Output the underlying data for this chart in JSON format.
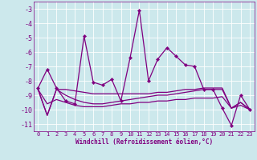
{
  "xlabel": "Windchill (Refroidissement éolien,°C)",
  "background_color": "#cce8ec",
  "line_color": "#800080",
  "xlim": [
    -0.5,
    23.5
  ],
  "ylim": [
    -11.5,
    -2.5
  ],
  "yticks": [
    -3,
    -4,
    -5,
    -6,
    -7,
    -8,
    -9,
    -10,
    -11
  ],
  "xticks": [
    0,
    1,
    2,
    3,
    4,
    5,
    6,
    7,
    8,
    9,
    10,
    11,
    12,
    13,
    14,
    15,
    16,
    17,
    18,
    19,
    20,
    21,
    22,
    23
  ],
  "series1_x": [
    0,
    1,
    2,
    3,
    4,
    5,
    6,
    7,
    8,
    9,
    10,
    11,
    12,
    13,
    14,
    15,
    16,
    17,
    18,
    19,
    20,
    21,
    22,
    23
  ],
  "series1_y": [
    -8.5,
    -7.2,
    -8.5,
    -9.4,
    -9.6,
    -4.9,
    -8.1,
    -8.3,
    -7.9,
    -9.4,
    -6.4,
    -3.1,
    -8.0,
    -6.5,
    -5.7,
    -6.3,
    -6.9,
    -7.0,
    -8.6,
    -8.6,
    -9.9,
    -11.1,
    -9.0,
    -10.0
  ],
  "series2_x": [
    0,
    1,
    2,
    3,
    4,
    5,
    6,
    7,
    8,
    9,
    10,
    11,
    12,
    13,
    14,
    15,
    16,
    17,
    18,
    19,
    20,
    21,
    22,
    23
  ],
  "series2_y": [
    -8.6,
    -10.4,
    -8.6,
    -8.6,
    -8.7,
    -8.8,
    -8.9,
    -8.9,
    -8.9,
    -8.9,
    -8.9,
    -8.9,
    -8.9,
    -8.8,
    -8.8,
    -8.7,
    -8.6,
    -8.6,
    -8.5,
    -8.5,
    -8.5,
    -9.9,
    -9.7,
    -10.0
  ],
  "series3_x": [
    0,
    1,
    2,
    3,
    4,
    5,
    6,
    7,
    8,
    9,
    10,
    11,
    12,
    13,
    14,
    15,
    16,
    17,
    18,
    19,
    20,
    21,
    22,
    23
  ],
  "series3_y": [
    -8.6,
    -10.4,
    -8.6,
    -9.0,
    -9.3,
    -9.5,
    -9.6,
    -9.6,
    -9.5,
    -9.4,
    -9.3,
    -9.2,
    -9.1,
    -9.0,
    -9.0,
    -8.9,
    -8.8,
    -8.7,
    -8.6,
    -8.6,
    -8.6,
    -9.9,
    -9.5,
    -10.0
  ],
  "series4_x": [
    0,
    1,
    2,
    3,
    4,
    5,
    6,
    7,
    8,
    9,
    10,
    11,
    12,
    13,
    14,
    15,
    16,
    17,
    18,
    19,
    20,
    21,
    22,
    23
  ],
  "series4_y": [
    -8.6,
    -9.6,
    -9.3,
    -9.5,
    -9.7,
    -9.8,
    -9.8,
    -9.8,
    -9.7,
    -9.6,
    -9.6,
    -9.5,
    -9.5,
    -9.4,
    -9.4,
    -9.3,
    -9.3,
    -9.2,
    -9.2,
    -9.2,
    -9.1,
    -9.9,
    -9.5,
    -10.0
  ]
}
